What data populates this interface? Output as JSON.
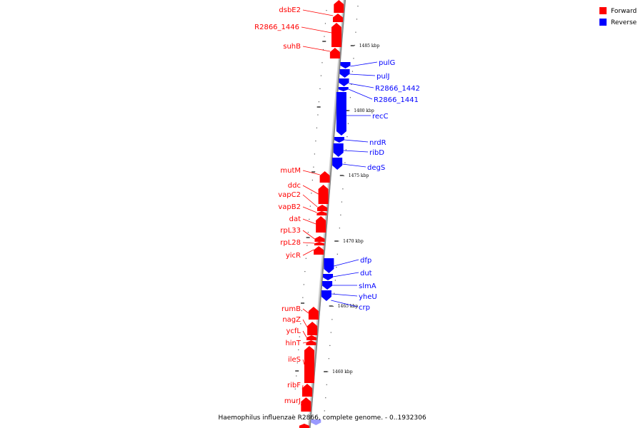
{
  "caption": "Haemophilus influenzae R2866, complete genome. - 0..1932306",
  "legend": [
    {
      "label": "Forward",
      "color": "#ff0000"
    },
    {
      "label": "Reverse",
      "color": "#0000ff"
    }
  ],
  "kbp_labels": [
    "1485 kbp",
    "1480 kbp",
    "1475 kbp",
    "1470 kbp",
    "1465 kbp",
    "1460 kbp"
  ],
  "forward_genes": [
    "dsbE2",
    "R2866_1446",
    "suhB",
    "mutM",
    "ddc",
    "vapC2",
    "vapB2",
    "dat",
    "rpL33",
    "rpL28",
    "yicR",
    "rumB",
    "nagZ",
    "ycfL",
    "hinT",
    "ileS",
    "ribF",
    "murJ"
  ],
  "reverse_genes": [
    "pulG",
    "pulJ",
    "R2866_1442",
    "R2866_1441",
    "recC",
    "nrdR",
    "ribD",
    "degS",
    "dfp",
    "dut",
    "slmA",
    "yheU",
    "crp"
  ],
  "colors": {
    "forward": "#ff0000",
    "reverse": "#0000ff",
    "backbone": "#888888"
  }
}
